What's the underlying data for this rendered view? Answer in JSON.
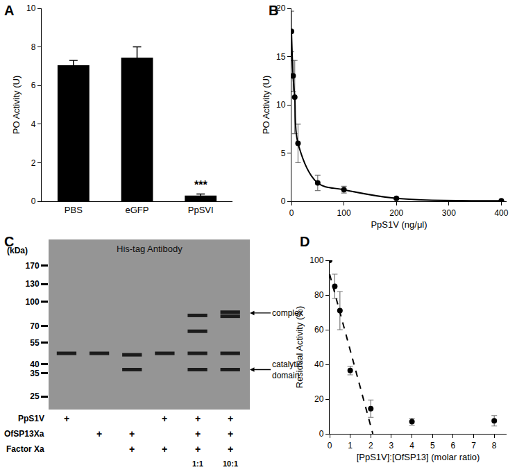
{
  "chart_data": [
    {
      "panel": "A",
      "type": "bar",
      "categories": [
        "PBS",
        "eGFP",
        "PpSVI"
      ],
      "values": [
        7.05,
        7.45,
        0.3
      ],
      "errors": [
        0.25,
        0.55,
        0.08
      ],
      "color": "#000000",
      "ylabel": "PO Activity (U)",
      "ylim": [
        0,
        10
      ],
      "yticks": [
        0,
        2,
        4,
        6,
        8,
        10
      ],
      "annotations": [
        {
          "category": "PpSVI",
          "text": "***"
        }
      ]
    },
    {
      "panel": "B",
      "type": "line",
      "xlabel": "PpS1V (ng/μl)",
      "ylabel": "PO Activity (U)",
      "xlim": [
        0,
        410
      ],
      "xticks": [
        0,
        100,
        200,
        300,
        400
      ],
      "ylim": [
        0,
        20
      ],
      "yticks": [
        0,
        5,
        10,
        15,
        20
      ],
      "series": [
        {
          "color": "#000000",
          "marker": "circle",
          "line_style": "solid",
          "x": [
            0,
            3.125,
            6.25,
            12.5,
            50,
            100,
            200,
            400
          ],
          "values": [
            17.6,
            13.0,
            10.8,
            6.0,
            1.9,
            1.2,
            0.3,
            0.05
          ],
          "errors": [
            2.1,
            1.6,
            3.8,
            2.0,
            0.8,
            0.35,
            0.1,
            0.05
          ]
        }
      ]
    },
    {
      "panel": "C",
      "type": "blot",
      "title": "His-tag Antibody",
      "ylabel": "(kDa)",
      "log": "y",
      "ylim": [
        20.6,
        250
      ],
      "yticks": [
        170,
        130,
        100,
        70,
        55,
        40,
        35,
        25
      ],
      "lanes": [
        {
          "bands": [
            47
          ]
        },
        {
          "bands": [
            47
          ]
        },
        {
          "bands": [
            46,
            37
          ]
        },
        {
          "bands": [
            47
          ]
        },
        {
          "bands": [
            82,
            65,
            47,
            37
          ]
        },
        {
          "bands": [
            86,
            81,
            47,
            37
          ]
        }
      ],
      "arrows": [
        {
          "text": "complex",
          "kDa": 85
        },
        {
          "text": "catalytic domain",
          "kDa": 37
        }
      ],
      "rows": [
        {
          "label": "PpS1V",
          "marks": [
            "+",
            null,
            null,
            "+",
            "+",
            "+"
          ]
        },
        {
          "label": "OfSP13Xa",
          "marks": [
            null,
            "+",
            "+",
            null,
            "+",
            "+"
          ]
        },
        {
          "label": "Factor Xa",
          "marks": [
            null,
            null,
            "+",
            "+",
            "+",
            "+"
          ]
        },
        {
          "label": null,
          "marks": [
            null,
            null,
            null,
            null,
            "1:1",
            "10:1"
          ]
        }
      ]
    },
    {
      "panel": "D",
      "type": "scatter",
      "xlabel": "[PpS1V]:[OfSP13] (molar ratio)",
      "ylabel": "Residual Activity (%)",
      "xlim": [
        0,
        8.6
      ],
      "xticks": [
        0,
        1,
        2,
        3,
        4,
        5,
        6,
        7,
        8
      ],
      "ylim": [
        0,
        100
      ],
      "yticks": [
        0,
        20,
        40,
        60,
        80,
        100
      ],
      "series": [
        {
          "color": "#000000",
          "marker": "circle",
          "line_style": "none",
          "x": [
            0,
            0.25,
            0.5,
            1,
            2,
            4,
            8
          ],
          "values": [
            100,
            85,
            71,
            36.5,
            14.5,
            7,
            7.5
          ],
          "errors": [
            0,
            7,
            11,
            2.5,
            5,
            2,
            3
          ]
        },
        {
          "color": "#000000",
          "marker": "none",
          "line_style": "dash",
          "x": [
            0,
            2.1
          ],
          "values": [
            92,
            0
          ]
        }
      ]
    }
  ]
}
